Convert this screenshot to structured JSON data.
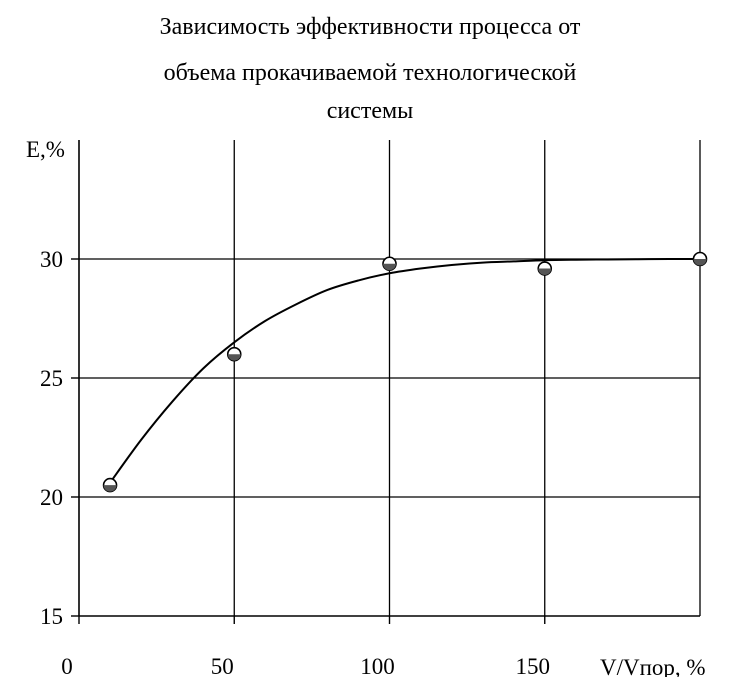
{
  "chart_data": {
    "type": "scatter",
    "title_lines": [
      "Зависимость эффективности процесса от",
      "объема прокачиваемой технологической",
      "системы"
    ],
    "xlabel": "V/Vпор, %",
    "ylabel": "E,%",
    "xlim": [
      0,
      200
    ],
    "ylim": [
      15,
      35
    ],
    "x_ticks": [
      0,
      50,
      100,
      150
    ],
    "x_tick_labels": [
      "0",
      "50",
      "100",
      "150"
    ],
    "y_ticks": [
      15,
      20,
      25,
      30
    ],
    "y_tick_labels": [
      "15",
      "20",
      "25",
      "30"
    ],
    "grid": true,
    "legend": "none",
    "series": [
      {
        "kind": "points",
        "marker": "circle-open",
        "x": [
          10,
          50,
          100,
          150,
          200
        ],
        "y": [
          20.5,
          26,
          29.8,
          29.6,
          30
        ]
      },
      {
        "kind": "fit-curve",
        "x": [
          10,
          20,
          30,
          40,
          50,
          60,
          70,
          80,
          90,
          100,
          110,
          120,
          130,
          140,
          150,
          160,
          170,
          180,
          190,
          200
        ],
        "y": [
          20.6,
          22.4,
          24.0,
          25.4,
          26.5,
          27.4,
          28.1,
          28.7,
          29.1,
          29.4,
          29.6,
          29.75,
          29.85,
          29.9,
          29.95,
          29.97,
          29.98,
          29.99,
          30.0,
          30.0
        ]
      }
    ]
  }
}
